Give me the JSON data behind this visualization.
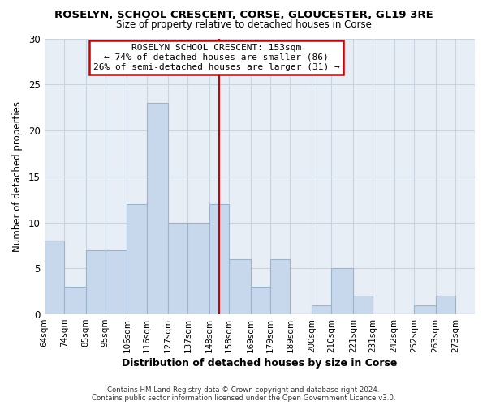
{
  "title": "ROSELYN, SCHOOL CRESCENT, CORSE, GLOUCESTER, GL19 3RE",
  "subtitle": "Size of property relative to detached houses in Corse",
  "xlabel": "Distribution of detached houses by size in Corse",
  "ylabel": "Number of detached properties",
  "footer_line1": "Contains HM Land Registry data © Crown copyright and database right 2024.",
  "footer_line2": "Contains public sector information licensed under the Open Government Licence v3.0.",
  "bin_labels": [
    "64sqm",
    "74sqm",
    "85sqm",
    "95sqm",
    "106sqm",
    "116sqm",
    "127sqm",
    "137sqm",
    "148sqm",
    "158sqm",
    "169sqm",
    "179sqm",
    "189sqm",
    "200sqm",
    "210sqm",
    "221sqm",
    "231sqm",
    "242sqm",
    "252sqm",
    "263sqm",
    "273sqm"
  ],
  "bin_edges": [
    64,
    74,
    85,
    95,
    106,
    116,
    127,
    137,
    148,
    158,
    169,
    179,
    189,
    200,
    210,
    221,
    231,
    242,
    252,
    263,
    273,
    283
  ],
  "counts": [
    8,
    3,
    7,
    7,
    12,
    23,
    10,
    10,
    12,
    6,
    3,
    6,
    0,
    1,
    5,
    2,
    0,
    0,
    1,
    2,
    0
  ],
  "bar_color": "#c8d8ec",
  "bar_edge_color": "#9ab4cc",
  "property_value": 153,
  "vline_color": "#cc0000",
  "annotation_box_edge_color": "#cc0000",
  "annotation_line1": "ROSELYN SCHOOL CRESCENT: 153sqm",
  "annotation_line2": "← 74% of detached houses are smaller (86)",
  "annotation_line3": "26% of semi-detached houses are larger (31) →",
  "ylim": [
    0,
    30
  ],
  "yticks": [
    0,
    5,
    10,
    15,
    20,
    25,
    30
  ],
  "plot_bg_color": "#e8eef6",
  "background_color": "#ffffff",
  "grid_color": "#c8d4e0"
}
